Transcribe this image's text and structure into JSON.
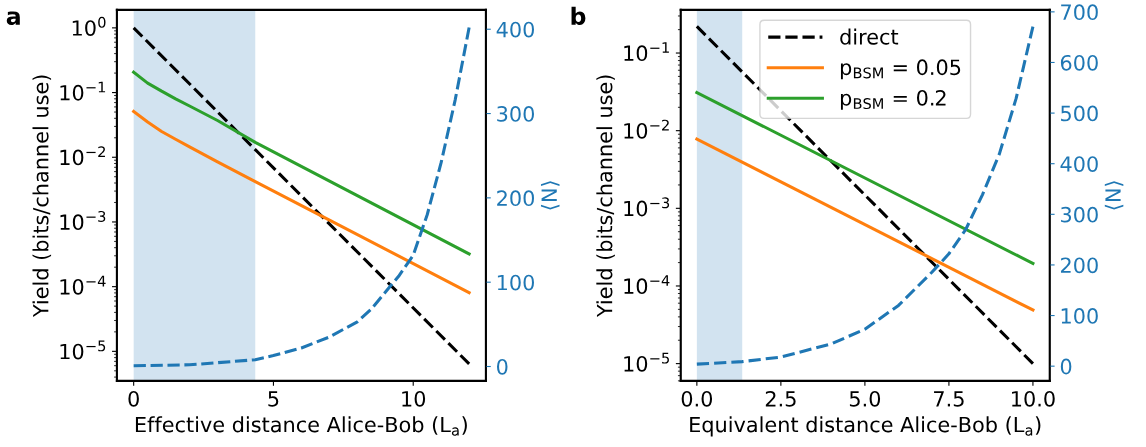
{
  "chart_data": [
    {
      "type": "line",
      "xlabel": "Effective distance Alice-Bob (L$_{a}$)",
      "ylabel": "Yield (bits/channel use)",
      "y2label": "⟨N⟩",
      "log": "y",
      "grid": false,
      "legend": false,
      "xlim": [
        -0.6,
        12.6
      ],
      "xticks": [
        0,
        5,
        10
      ],
      "ylim": [
        3.5e-06,
        1.9
      ],
      "yticks": [
        {
          "value": 1,
          "label": "10$^{0}$"
        },
        {
          "value": 0.1,
          "label": "10$^{−1}$"
        },
        {
          "value": 0.01,
          "label": "10$^{−2}$"
        },
        {
          "value": 0.001,
          "label": "10$^{−3}$"
        },
        {
          "value": 0.0001,
          "label": "10$^{−4}$"
        },
        {
          "value": 1e-05,
          "label": "10$^{−5}$"
        }
      ],
      "y2lim": [
        -17,
        423
      ],
      "y2ticks": [
        0,
        100,
        200,
        300,
        400
      ],
      "bands": [
        {
          "axis": "x",
          "from": 0,
          "to": 4.35,
          "color": "#d2e3f0"
        }
      ],
      "annotations": [
        "a"
      ],
      "series": [
        {
          "color": "#000000",
          "line_style": "dashed",
          "x": [
            0,
            12
          ],
          "values": [
            1,
            6.4e-06
          ]
        },
        {
          "color": "#ff7f0e",
          "line_style": "solid",
          "x": [
            0,
            0.5,
            1,
            1.5,
            2,
            3,
            4.35,
            12
          ],
          "values": [
            0.051,
            0.035,
            0.025,
            0.019,
            0.0145,
            0.0085,
            0.0042,
            8.1e-05
          ]
        },
        {
          "color": "#2ca02c",
          "line_style": "solid",
          "x": [
            0,
            0.5,
            1,
            1.5,
            2,
            3,
            4.35,
            12
          ],
          "values": [
            0.206,
            0.14,
            0.105,
            0.08,
            0.062,
            0.037,
            0.017,
            0.00032
          ]
        },
        {
          "color": "#1f77b4",
          "line_style": "dashed",
          "axis": "y2",
          "x": [
            0,
            2,
            4.35,
            5,
            6,
            7,
            8,
            8.5,
            9,
            9.5,
            10,
            10.5,
            11,
            11.5,
            12
          ],
          "values": [
            1,
            2,
            8,
            13,
            22,
            35,
            53,
            68,
            88,
            108,
            132,
            180,
            242,
            316,
            402
          ]
        }
      ]
    },
    {
      "type": "line",
      "xlabel": "Equivalent distance Alice-Bob (L$_{a}$)",
      "ylabel": "Yield (bits/channel use)",
      "y2label": "⟨N⟩",
      "log": "y",
      "grid": false,
      "legend": "top",
      "xlim": [
        -0.48,
        10.5
      ],
      "xticks": [
        {
          "value": 0,
          "label": "0.0"
        },
        {
          "value": 2.5,
          "label": "2.5"
        },
        {
          "value": 5,
          "label": "5.0"
        },
        {
          "value": 7.5,
          "label": "7.5"
        },
        {
          "value": 10,
          "label": "10.0"
        }
      ],
      "ylim": [
        6e-06,
        0.36
      ],
      "yticks": [
        {
          "value": 0.1,
          "label": "10$^{−1}$"
        },
        {
          "value": 0.01,
          "label": "10$^{−2}$"
        },
        {
          "value": 0.001,
          "label": "10$^{−3}$"
        },
        {
          "value": 0.0001,
          "label": "10$^{−4}$"
        },
        {
          "value": 1e-05,
          "label": "10$^{−5}$"
        }
      ],
      "y2lim": [
        -29,
        704
      ],
      "y2ticks": [
        0,
        100,
        200,
        300,
        400,
        500,
        600,
        700
      ],
      "bands": [
        {
          "axis": "x",
          "from": 0,
          "to": 1.35,
          "color": "#d2e3f0"
        }
      ],
      "annotations": [
        "b"
      ],
      "series": [
        {
          "name": "direct",
          "color": "#000000",
          "line_style": "dashed",
          "x": [
            0,
            10
          ],
          "values": [
            0.22,
            1e-05
          ]
        },
        {
          "name": "p$_{BSM}$ = 0.05",
          "color": "#ff7f0e",
          "line_style": "solid",
          "x": [
            0,
            10
          ],
          "values": [
            0.0078,
            4.9e-05
          ]
        },
        {
          "name": "p$_{BSM}$ = 0.2",
          "color": "#2ca02c",
          "line_style": "solid",
          "x": [
            0,
            10
          ],
          "values": [
            0.031,
            0.000195
          ]
        },
        {
          "color": "#1f77b4",
          "line_style": "dashed",
          "axis": "y2",
          "x": [
            0,
            1.35,
            2.5,
            4,
            5,
            6,
            7,
            7.5,
            8,
            8.5,
            9,
            9.5,
            10
          ],
          "values": [
            4,
            9,
            18,
            44,
            73,
            120,
            186,
            222,
            270,
            339,
            419,
            529,
            671
          ]
        }
      ]
    }
  ]
}
